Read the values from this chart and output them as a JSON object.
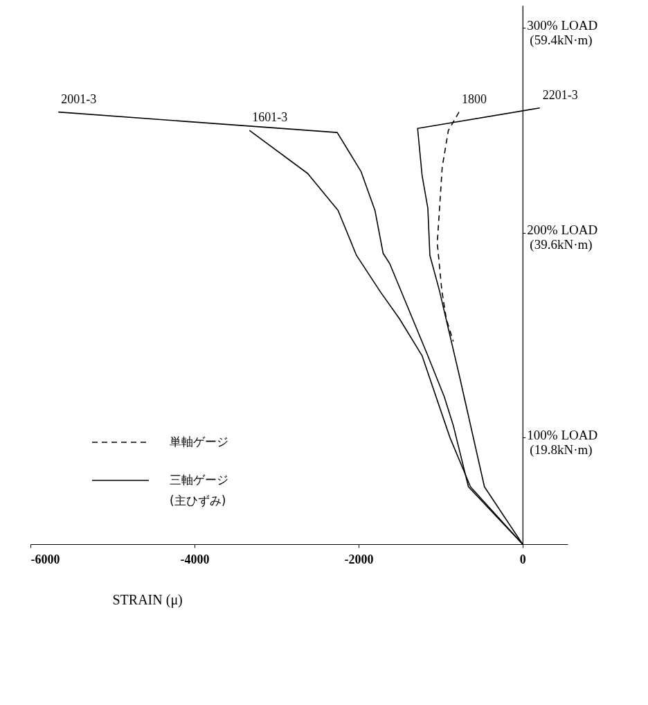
{
  "chart_data": {
    "type": "line",
    "xlabel": "STRAIN (μ)",
    "xlim": [
      -6000,
      550
    ],
    "xticks": [
      -6000,
      -4000,
      -2000,
      0
    ],
    "ylim": [
      48,
      311
    ],
    "yticks": [
      {
        "value": 100,
        "label": "100% LOAD"
      },
      {
        "value": 200,
        "label": "200% LOAD"
      },
      {
        "value": 300,
        "label": "300% LOAD"
      }
    ],
    "y2lim": [
      9.504,
      61.578
    ],
    "y2ticks": [
      {
        "value": 19.8,
        "label": "(19.8kN·m)"
      },
      {
        "value": 39.6,
        "label": "(39.6kN·m)"
      },
      {
        "value": 59.4,
        "label": "(59.4kN·m)"
      }
    ],
    "grid": false,
    "marker": "none",
    "legend": "left",
    "annotations": [
      "単軸ゲージ",
      "三軸ゲージ\n(主ひずみ)"
    ],
    "series": [
      {
        "name": "1800",
        "color": "#000000",
        "line_style": "dashed",
        "x": [
          -775,
          -905,
          -980,
          -1040,
          -985,
          -930,
          -845
        ],
        "values": [
          259,
          250,
          232,
          195,
          172,
          158,
          147
        ]
      },
      {
        "name": "2001-3",
        "color": "#000000",
        "line_style": "solid",
        "x": [
          -5660,
          -2260,
          -1970,
          -1800,
          -1700,
          -1620,
          -1165,
          -955,
          -845,
          -660,
          0
        ],
        "values": [
          259,
          249,
          230,
          211,
          190,
          185,
          141,
          120,
          106,
          76,
          48
        ]
      },
      {
        "name": "1601-3",
        "color": "#000000",
        "line_style": "solid",
        "x": [
          -3330,
          -2620,
          -2250,
          -2025,
          -1730,
          -1500,
          -1225,
          -885,
          -635,
          0
        ],
        "values": [
          250,
          229,
          211,
          189,
          171,
          158,
          140,
          100,
          76,
          48
        ]
      },
      {
        "name": "2201-3",
        "color": "#000000",
        "line_style": "solid",
        "x": [
          210,
          -1280,
          -1225,
          -1155,
          -1130,
          -1015,
          -775,
          -465,
          0
        ],
        "values": [
          261,
          251,
          228,
          212,
          189,
          172,
          131,
          76,
          48
        ]
      }
    ]
  }
}
